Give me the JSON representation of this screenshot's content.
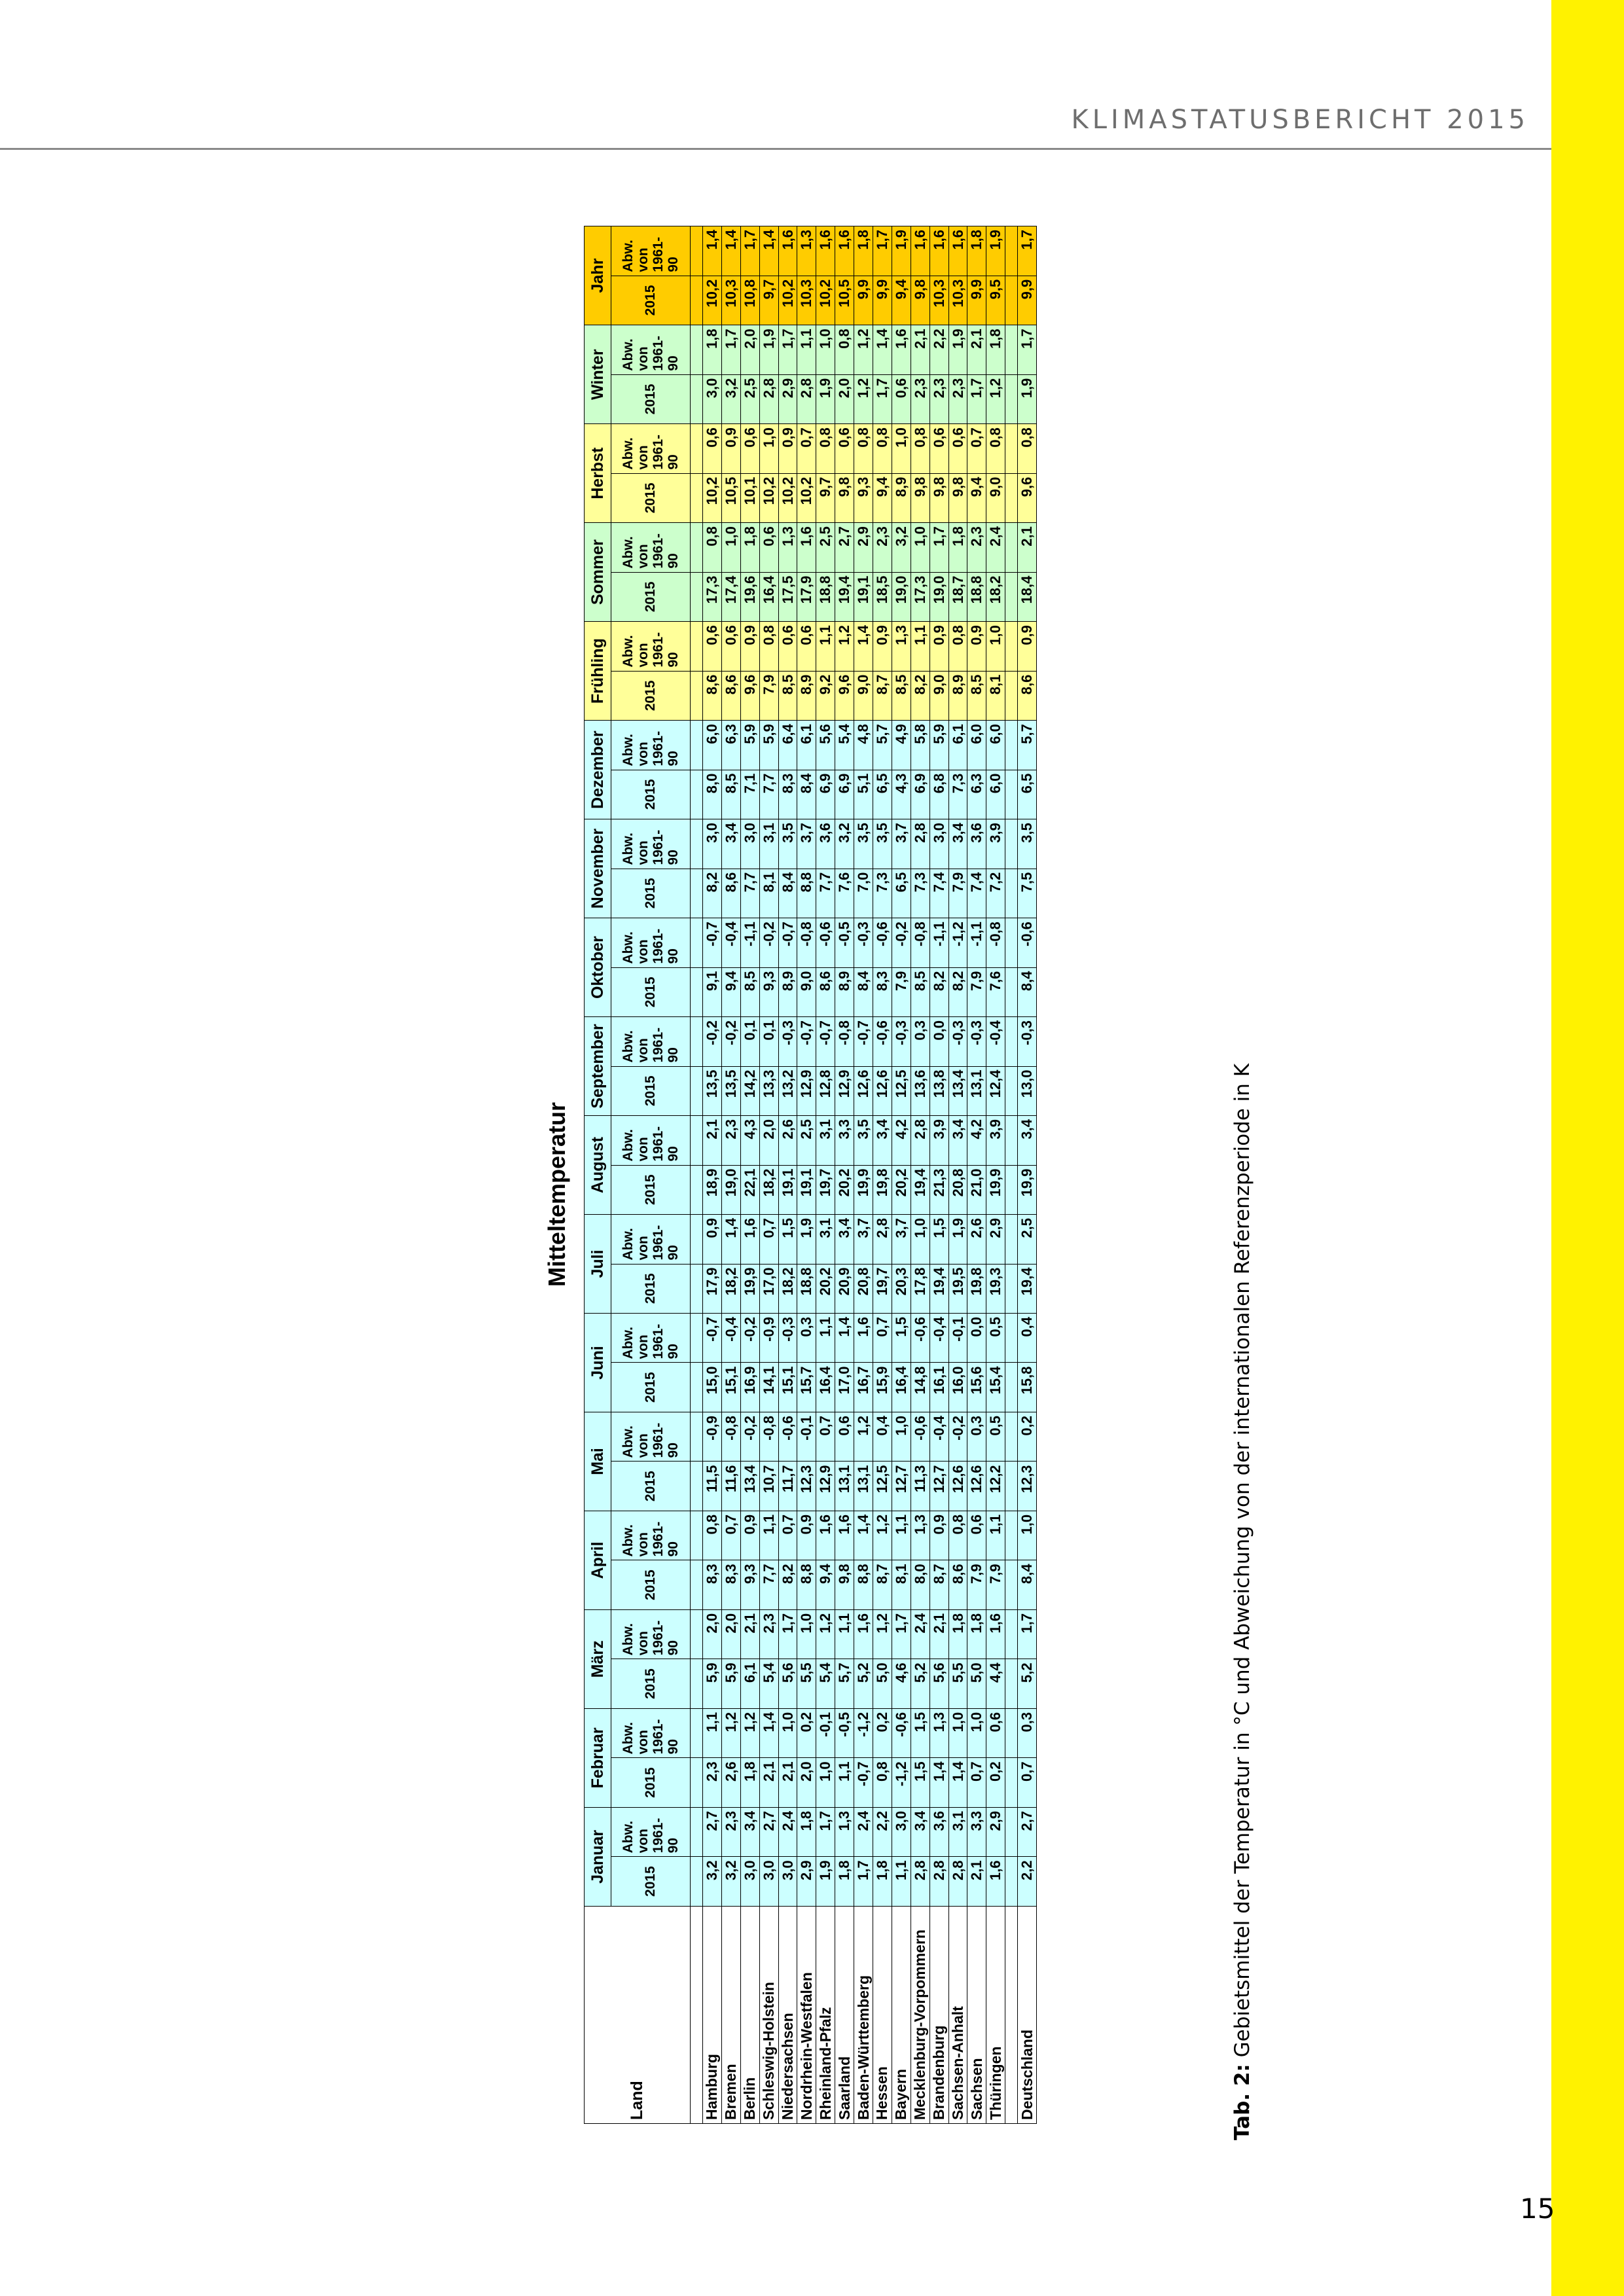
{
  "header": {
    "title": "KLIMASTATUSBERICHT 2015"
  },
  "page_number": "15",
  "table": {
    "title": "Mitteltemperatur",
    "land_header": "Land",
    "periods": [
      {
        "label": "Januar",
        "color": "#ccffff"
      },
      {
        "label": "Februar",
        "color": "#ccffff"
      },
      {
        "label": "März",
        "color": "#ccffff"
      },
      {
        "label": "April",
        "color": "#ccffff"
      },
      {
        "label": "Mai",
        "color": "#ccffff"
      },
      {
        "label": "Juni",
        "color": "#ccffff"
      },
      {
        "label": "Juli",
        "color": "#ccffff"
      },
      {
        "label": "August",
        "color": "#ccffff"
      },
      {
        "label": "September",
        "color": "#ccffff"
      },
      {
        "label": "Oktober",
        "color": "#ccffff"
      },
      {
        "label": "November",
        "color": "#ccffff"
      },
      {
        "label": "Dezember",
        "color": "#ccffff"
      },
      {
        "label": "Frühling",
        "color": "#ffff99"
      },
      {
        "label": "Sommer",
        "color": "#ccffcc"
      },
      {
        "label": "Herbst",
        "color": "#ffff99"
      },
      {
        "label": "Winter",
        "color": "#ccffcc"
      },
      {
        "label": "Jahr",
        "color": "#ffcc00"
      }
    ],
    "sub_year": "2015",
    "sub_dev_lines": [
      "Abw.",
      "von",
      "1961-",
      "90"
    ],
    "rows": [
      {
        "land": "Hamburg",
        "values": [
          "3,2",
          "2,7",
          "2,3",
          "1,1",
          "5,9",
          "2,0",
          "8,3",
          "0,8",
          "11,5",
          "-0,9",
          "15,0",
          "-0,7",
          "17,9",
          "0,9",
          "18,9",
          "2,1",
          "13,5",
          "-0,2",
          "9,1",
          "-0,7",
          "8,2",
          "3,0",
          "8,0",
          "6,0",
          "8,6",
          "0,6",
          "17,3",
          "0,8",
          "10,2",
          "0,6",
          "3,0",
          "1,8",
          "10,2",
          "1,4"
        ]
      },
      {
        "land": "Bremen",
        "values": [
          "3,2",
          "2,3",
          "2,6",
          "1,2",
          "5,9",
          "2,0",
          "8,3",
          "0,7",
          "11,6",
          "-0,8",
          "15,1",
          "-0,4",
          "18,2",
          "1,4",
          "19,0",
          "2,3",
          "13,5",
          "-0,2",
          "9,4",
          "-0,4",
          "8,6",
          "3,4",
          "8,5",
          "6,3",
          "8,6",
          "0,6",
          "17,4",
          "1,0",
          "10,5",
          "0,9",
          "3,2",
          "1,7",
          "10,3",
          "1,4"
        ]
      },
      {
        "land": "Berlin",
        "values": [
          "3,0",
          "3,4",
          "1,8",
          "1,2",
          "6,1",
          "2,1",
          "9,3",
          "0,9",
          "13,4",
          "-0,2",
          "16,9",
          "-0,2",
          "19,9",
          "1,6",
          "22,1",
          "4,3",
          "14,2",
          "0,1",
          "8,5",
          "-1,1",
          "7,7",
          "3,0",
          "7,1",
          "5,9",
          "9,6",
          "0,9",
          "19,6",
          "1,8",
          "10,1",
          "0,6",
          "2,5",
          "2,0",
          "10,8",
          "1,7"
        ]
      },
      {
        "land": "Schleswig-Holstein",
        "values": [
          "3,0",
          "2,7",
          "2,1",
          "1,4",
          "5,4",
          "2,3",
          "7,7",
          "1,1",
          "10,7",
          "-0,8",
          "14,1",
          "-0,9",
          "17,0",
          "0,7",
          "18,2",
          "2,0",
          "13,3",
          "0,1",
          "9,3",
          "-0,2",
          "8,1",
          "3,1",
          "7,7",
          "5,9",
          "7,9",
          "0,8",
          "16,4",
          "0,6",
          "10,2",
          "1,0",
          "2,8",
          "1,9",
          "9,7",
          "1,4"
        ]
      },
      {
        "land": "Niedersachsen",
        "values": [
          "3,0",
          "2,4",
          "2,1",
          "1,0",
          "5,6",
          "1,7",
          "8,2",
          "0,7",
          "11,7",
          "-0,6",
          "15,1",
          "-0,3",
          "18,2",
          "1,5",
          "19,1",
          "2,6",
          "13,2",
          "-0,3",
          "8,9",
          "-0,7",
          "8,4",
          "3,5",
          "8,3",
          "6,4",
          "8,5",
          "0,6",
          "17,5",
          "1,3",
          "10,2",
          "0,9",
          "2,9",
          "1,7",
          "10,2",
          "1,6"
        ]
      },
      {
        "land": "Nordrhein-Westfalen",
        "values": [
          "2,9",
          "1,8",
          "2,0",
          "0,2",
          "5,5",
          "1,0",
          "8,8",
          "0,9",
          "12,3",
          "-0,1",
          "15,7",
          "0,3",
          "18,8",
          "1,9",
          "19,1",
          "2,5",
          "12,9",
          "-0,7",
          "9,0",
          "-0,8",
          "8,8",
          "3,7",
          "8,4",
          "6,1",
          "8,9",
          "0,6",
          "17,9",
          "1,6",
          "10,2",
          "0,7",
          "2,8",
          "1,1",
          "10,3",
          "1,3"
        ]
      },
      {
        "land": "Rheinland-Pfalz",
        "values": [
          "1,9",
          "1,7",
          "1,0",
          "-0,1",
          "5,4",
          "1,2",
          "9,4",
          "1,6",
          "12,9",
          "0,7",
          "16,4",
          "1,1",
          "20,2",
          "3,1",
          "19,7",
          "3,1",
          "12,8",
          "-0,7",
          "8,6",
          "-0,6",
          "7,7",
          "3,6",
          "6,9",
          "5,6",
          "9,2",
          "1,1",
          "18,8",
          "2,5",
          "9,7",
          "0,8",
          "1,9",
          "1,0",
          "10,2",
          "1,6"
        ]
      },
      {
        "land": "Saarland",
        "values": [
          "1,8",
          "1,3",
          "1,1",
          "-0,5",
          "5,7",
          "1,1",
          "9,8",
          "1,6",
          "13,1",
          "0,6",
          "17,0",
          "1,4",
          "20,9",
          "3,4",
          "20,2",
          "3,3",
          "12,9",
          "-0,8",
          "8,9",
          "-0,5",
          "7,6",
          "3,2",
          "6,9",
          "5,4",
          "9,6",
          "1,2",
          "19,4",
          "2,7",
          "9,8",
          "0,6",
          "2,0",
          "0,8",
          "10,5",
          "1,6"
        ]
      },
      {
        "land": "Baden-Württemberg",
        "values": [
          "1,7",
          "2,4",
          "-0,7",
          "-1,2",
          "5,2",
          "1,6",
          "8,8",
          "1,4",
          "13,1",
          "1,2",
          "16,7",
          "1,6",
          "20,8",
          "3,7",
          "19,9",
          "3,5",
          "12,6",
          "-0,7",
          "8,4",
          "-0,3",
          "7,0",
          "3,5",
          "5,1",
          "4,8",
          "9,0",
          "1,4",
          "19,1",
          "2,9",
          "9,3",
          "0,8",
          "1,2",
          "1,2",
          "9,9",
          "1,8"
        ]
      },
      {
        "land": "Hessen",
        "values": [
          "1,8",
          "2,2",
          "0,8",
          "0,2",
          "5,0",
          "1,2",
          "8,7",
          "1,2",
          "12,5",
          "0,4",
          "15,9",
          "0,7",
          "19,7",
          "2,8",
          "19,8",
          "3,4",
          "12,6",
          "-0,6",
          "8,3",
          "-0,6",
          "7,3",
          "3,5",
          "6,5",
          "5,7",
          "8,7",
          "0,9",
          "18,5",
          "2,3",
          "9,4",
          "0,8",
          "1,7",
          "1,4",
          "9,9",
          "1,7"
        ]
      },
      {
        "land": "Bayern",
        "values": [
          "1,1",
          "3,0",
          "-1,2",
          "-0,6",
          "4,6",
          "1,7",
          "8,1",
          "1,1",
          "12,7",
          "1,0",
          "16,4",
          "1,5",
          "20,3",
          "3,7",
          "20,2",
          "4,2",
          "12,5",
          "-0,3",
          "7,9",
          "-0,2",
          "6,5",
          "3,7",
          "4,3",
          "4,9",
          "8,5",
          "1,3",
          "19,0",
          "3,2",
          "8,9",
          "1,0",
          "0,6",
          "1,6",
          "9,4",
          "1,9"
        ]
      },
      {
        "land": "Mecklenburg-Vorpommern",
        "values": [
          "2,8",
          "3,4",
          "1,5",
          "1,5",
          "5,2",
          "2,4",
          "8,0",
          "1,3",
          "11,3",
          "-0,6",
          "14,8",
          "-0,6",
          "17,8",
          "1,0",
          "19,4",
          "2,8",
          "13,6",
          "0,3",
          "8,5",
          "-0,8",
          "7,3",
          "2,8",
          "6,9",
          "5,8",
          "8,2",
          "1,1",
          "17,3",
          "1,0",
          "9,8",
          "0,8",
          "2,3",
          "2,1",
          "9,8",
          "1,6"
        ]
      },
      {
        "land": "Brandenburg",
        "values": [
          "2,8",
          "3,6",
          "1,4",
          "1,3",
          "5,6",
          "2,1",
          "8,7",
          "0,9",
          "12,7",
          "-0,4",
          "16,1",
          "-0,4",
          "19,4",
          "1,5",
          "21,3",
          "3,9",
          "13,8",
          "0,0",
          "8,2",
          "-1,1",
          "7,4",
          "3,0",
          "6,8",
          "5,9",
          "9,0",
          "0,9",
          "19,0",
          "1,7",
          "9,8",
          "0,6",
          "2,3",
          "2,2",
          "10,3",
          "1,6"
        ]
      },
      {
        "land": "Sachsen-Anhalt",
        "values": [
          "2,8",
          "3,1",
          "1,4",
          "1,0",
          "5,5",
          "1,8",
          "8,6",
          "0,8",
          "12,6",
          "-0,2",
          "16,0",
          "-0,1",
          "19,5",
          "1,9",
          "20,8",
          "3,4",
          "13,4",
          "-0,3",
          "8,2",
          "-1,2",
          "7,9",
          "3,4",
          "7,3",
          "6,1",
          "8,9",
          "0,8",
          "18,7",
          "1,8",
          "9,8",
          "0,6",
          "2,3",
          "1,9",
          "10,3",
          "1,6"
        ]
      },
      {
        "land": "Sachsen",
        "values": [
          "2,1",
          "3,3",
          "0,7",
          "1,0",
          "5,0",
          "1,8",
          "7,9",
          "0,6",
          "12,6",
          "0,3",
          "15,6",
          "0,0",
          "19,8",
          "2,6",
          "21,0",
          "4,2",
          "13,1",
          "-0,3",
          "7,9",
          "-1,1",
          "7,4",
          "3,6",
          "6,3",
          "6,0",
          "8,5",
          "0,9",
          "18,8",
          "2,3",
          "9,4",
          "0,7",
          "1,7",
          "2,1",
          "9,9",
          "1,8"
        ]
      },
      {
        "land": "Thüringen",
        "values": [
          "1,6",
          "2,9",
          "0,2",
          "0,6",
          "4,4",
          "1,6",
          "7,9",
          "1,1",
          "12,2",
          "0,5",
          "15,4",
          "0,5",
          "19,3",
          "2,9",
          "19,9",
          "3,9",
          "12,4",
          "-0,4",
          "7,6",
          "-0,8",
          "7,2",
          "3,9",
          "6,0",
          "6,0",
          "8,1",
          "1,0",
          "18,2",
          "2,4",
          "9,0",
          "0,8",
          "1,2",
          "1,8",
          "9,5",
          "1,9"
        ]
      }
    ],
    "total": {
      "land": "Deutschland",
      "values": [
        "2,2",
        "2,7",
        "0,7",
        "0,3",
        "5,2",
        "1,7",
        "8,4",
        "1,0",
        "12,3",
        "0,2",
        "15,8",
        "0,4",
        "19,4",
        "2,5",
        "19,9",
        "3,4",
        "13,0",
        "-0,3",
        "8,4",
        "-0,6",
        "7,5",
        "3,5",
        "6,5",
        "5,7",
        "8,6",
        "0,9",
        "18,4",
        "2,1",
        "9,6",
        "0,8",
        "1,9",
        "1,7",
        "9,9",
        "1,7"
      ]
    }
  },
  "caption": {
    "label": "Tab. 2:",
    "text": "Gebietsmittel der Temperatur in °C und Abweichung von der internationalen Referenzperiode in K"
  }
}
